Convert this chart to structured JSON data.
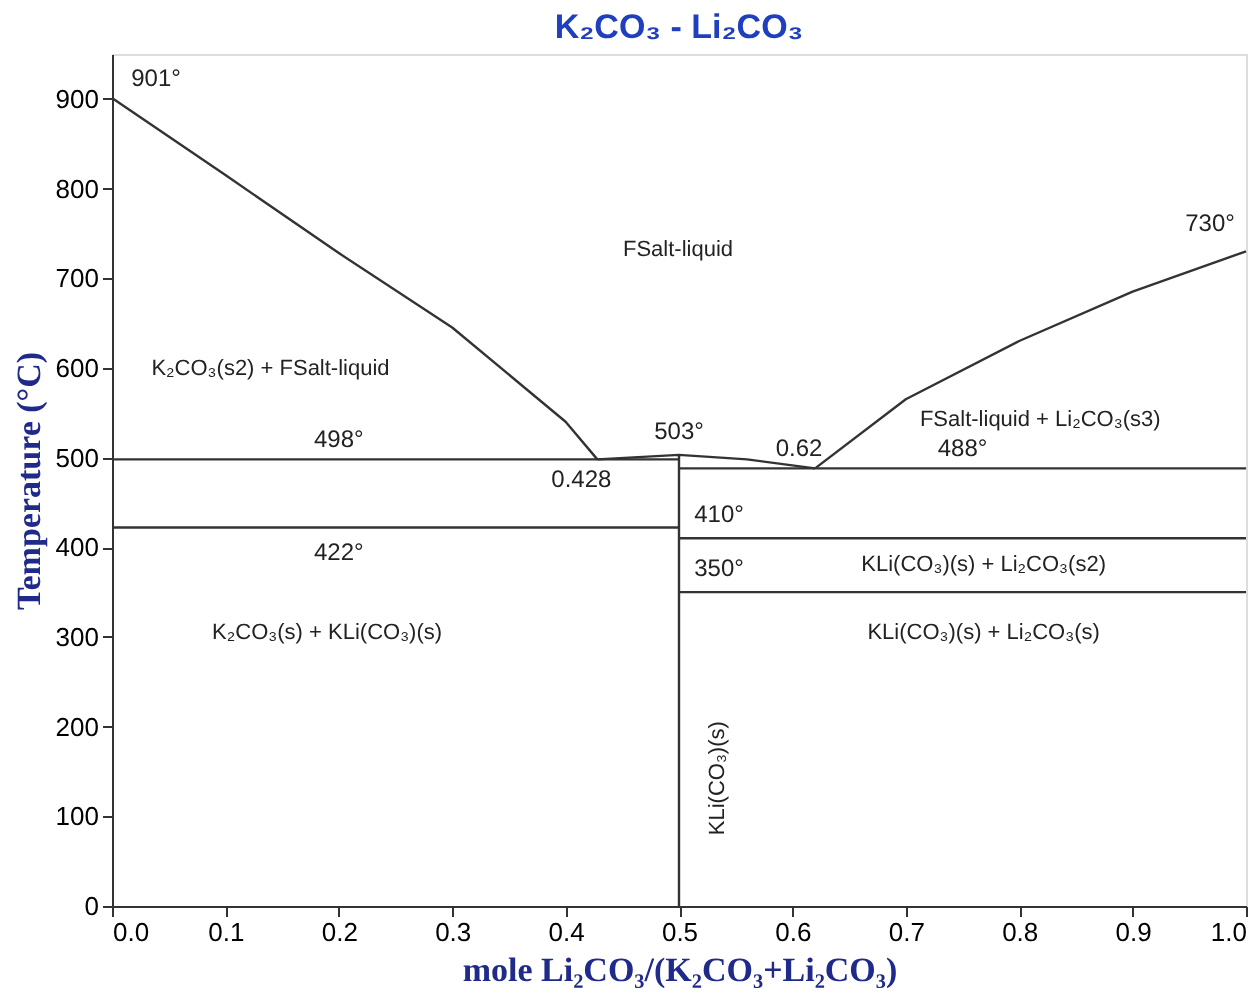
{
  "chart_data": {
    "type": "line",
    "title": "K₂CO₃ - Li₂CO₃",
    "xlabel": "mole Li₂CO₃/(K₂CO₃+Li₂CO₃)",
    "ylabel": "Temperature (°C)",
    "xlim": [
      0,
      1
    ],
    "ylim": [
      0,
      950
    ],
    "xticks": [
      {
        "value": 0,
        "label": "0.0"
      },
      0.1,
      0.2,
      0.3,
      0.4,
      0.5,
      0.6,
      0.7,
      0.8,
      0.9,
      {
        "value": 1,
        "label": "1.0"
      }
    ],
    "yticks": [
      0,
      100,
      200,
      300,
      400,
      500,
      600,
      700,
      800,
      900
    ],
    "grid": false,
    "legend": false,
    "marker": "none",
    "line_style": "solid",
    "series": [
      {
        "color": "#333333",
        "x": [
          0,
          0.1,
          0.2,
          0.3,
          0.4,
          0.428
        ],
        "values": [
          901,
          815,
          728,
          645,
          540,
          498
        ]
      },
      {
        "color": "#333333",
        "x": [
          0.428,
          0.5,
          0.56,
          0.62
        ],
        "values": [
          498,
          503,
          498,
          488
        ]
      },
      {
        "color": "#333333",
        "x": [
          0.62,
          0.7,
          0.8,
          0.9,
          1.0
        ],
        "values": [
          488,
          565,
          630,
          685,
          730
        ]
      },
      {
        "color": "#333333",
        "x": [
          0,
          0.5
        ],
        "values": [
          498,
          498
        ]
      },
      {
        "color": "#333333",
        "x": [
          0,
          0.5
        ],
        "values": [
          422,
          422
        ]
      },
      {
        "color": "#333333",
        "x": [
          0.5,
          1.0
        ],
        "values": [
          488,
          488
        ]
      },
      {
        "color": "#333333",
        "x": [
          0.5,
          1.0
        ],
        "values": [
          410,
          410
        ]
      },
      {
        "color": "#333333",
        "x": [
          0.5,
          1.0
        ],
        "values": [
          350,
          350
        ]
      },
      {
        "color": "#333333",
        "x": [
          0.5,
          0.5
        ],
        "values": [
          0,
          503
        ]
      }
    ],
    "annotations": [
      {
        "text": "901°",
        "x": 0,
        "y": 901
      },
      {
        "text": "730°",
        "x": 1.0,
        "y": 730
      },
      {
        "text": "498°",
        "x": 0.2,
        "y": 498
      },
      {
        "text": "422°",
        "x": 0.2,
        "y": 422
      },
      {
        "text": "503°",
        "x": 0.5,
        "y": 503
      },
      {
        "text": "0.428",
        "x": 0.428,
        "y": 498
      },
      {
        "text": "0.62",
        "x": 0.62,
        "y": 488
      },
      {
        "text": "488°",
        "x": 0.75,
        "y": 488
      },
      {
        "text": "410°",
        "x": 0.5,
        "y": 410
      },
      {
        "text": "350°",
        "x": 0.5,
        "y": 350
      },
      "FSalt-liquid",
      "K₂CO₃(s2) + FSalt-liquid",
      "FSalt-liquid + Li₂CO₃(s3)",
      "K₂CO₃(s) + KLi(CO₃)(s)",
      "KLi(CO₃)(s) + Li₂CO₃(s2)",
      "KLi(CO₃)(s) + Li₂CO₃(s)",
      "KLi(CO₃)(s)"
    ]
  }
}
